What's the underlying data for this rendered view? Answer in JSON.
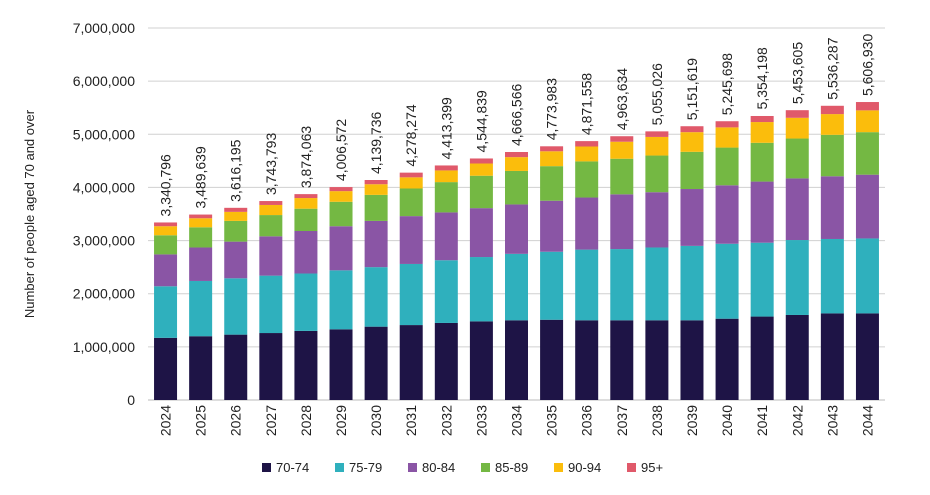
{
  "chart_data": {
    "type": "bar",
    "stacked": true,
    "title": "",
    "xlabel": "",
    "ylabel": "Number of people aged 70 and over",
    "ylim": [
      0,
      7000000
    ],
    "yticks": [
      0,
      1000000,
      2000000,
      3000000,
      4000000,
      5000000,
      6000000,
      7000000
    ],
    "ytick_labels": [
      "0",
      "1,000,000",
      "2,000,000",
      "3,000,000",
      "4,000,000",
      "5,000,000",
      "6,000,000",
      "7,000,000"
    ],
    "grid": true,
    "legend": "bottom",
    "categories": [
      "2024",
      "2025",
      "2026",
      "2027",
      "2028",
      "2029",
      "2030",
      "2031",
      "2032",
      "2033",
      "2034",
      "2035",
      "2036",
      "2037",
      "2038",
      "2039",
      "2040",
      "2041",
      "2042",
      "2043",
      "2044"
    ],
    "series": [
      {
        "name": "70-74",
        "color": "#1e1446",
        "values": [
          1170000,
          1200000,
          1230000,
          1260000,
          1300000,
          1330000,
          1380000,
          1410000,
          1450000,
          1480000,
          1500000,
          1510000,
          1500000,
          1500000,
          1500000,
          1500000,
          1530000,
          1570000,
          1600000,
          1630000,
          1630000
        ]
      },
      {
        "name": "75-79",
        "color": "#2fb0bd",
        "values": [
          970000,
          1040000,
          1060000,
          1080000,
          1080000,
          1110000,
          1120000,
          1150000,
          1180000,
          1210000,
          1250000,
          1280000,
          1330000,
          1340000,
          1370000,
          1400000,
          1410000,
          1390000,
          1410000,
          1400000,
          1410000
        ]
      },
      {
        "name": "80-84",
        "color": "#8a55a5",
        "values": [
          600000,
          630000,
          690000,
          740000,
          800000,
          830000,
          870000,
          900000,
          900000,
          920000,
          930000,
          960000,
          980000,
          1030000,
          1040000,
          1070000,
          1100000,
          1150000,
          1160000,
          1180000,
          1200000
        ]
      },
      {
        "name": "85-89",
        "color": "#74b843",
        "values": [
          360000,
          380000,
          390000,
          400000,
          420000,
          460000,
          490000,
          520000,
          570000,
          610000,
          630000,
          650000,
          680000,
          670000,
          690000,
          700000,
          710000,
          730000,
          750000,
          780000,
          800000
        ]
      },
      {
        "name": "90-94",
        "color": "#fbbd0c",
        "values": [
          170000,
          170000,
          170000,
          190000,
          200000,
          200000,
          200000,
          210000,
          220000,
          230000,
          260000,
          280000,
          280000,
          320000,
          350000,
          370000,
          380000,
          390000,
          390000,
          390000,
          410000
        ]
      },
      {
        "name": "95+",
        "color": "#e0596a",
        "values": [
          70796,
          69639,
          76195,
          73793,
          74063,
          76572,
          79736,
          88274,
          93399,
          94839,
          96566,
          93983,
          101558,
          103634,
          105026,
          111619,
          115698,
          114198,
          143605,
          156287,
          156930
        ]
      }
    ],
    "totals": [
      3340796,
      3489639,
      3616195,
      3743793,
      3874063,
      4006572,
      4139736,
      4278274,
      4413399,
      4544839,
      4666566,
      4773983,
      4871558,
      4963634,
      5055026,
      5151619,
      5245698,
      5354198,
      5453605,
      5536287,
      5606930
    ],
    "total_labels": [
      "3,340,796",
      "3,489,639",
      "3,616,195",
      "3,743,793",
      "3,874,063",
      "4,006,572",
      "4,139,736",
      "4,278,274",
      "4,413,399",
      "4,544,839",
      "4,666,566",
      "4,773,983",
      "4,871,558",
      "4,963,634",
      "5,055,026",
      "5,151,619",
      "5,245,698",
      "5,354,198",
      "5,453,605",
      "5,536,287",
      "5,606,930"
    ]
  }
}
